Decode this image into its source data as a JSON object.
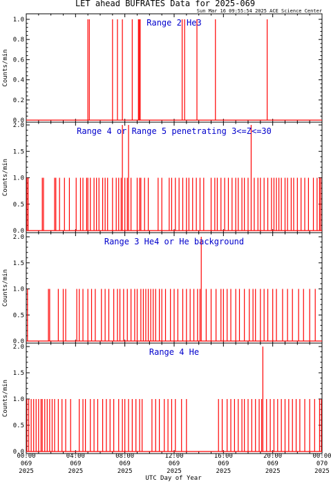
{
  "header": {
    "title": "LET ahead BUFRATES Data for 2025-069",
    "timestamp": "Sun Mar 16 09:55:54 2025 ACE Science Center"
  },
  "xaxis": {
    "label": "UTC Day of Year",
    "ticks": [
      {
        "hour": 0,
        "lines": [
          "00:00",
          "069",
          "2025"
        ]
      },
      {
        "hour": 4,
        "lines": [
          "04:00",
          "069",
          "2025"
        ]
      },
      {
        "hour": 8,
        "lines": [
          "08:00",
          "069",
          "2025"
        ]
      },
      {
        "hour": 12,
        "lines": [
          "12:00",
          "069",
          "2025"
        ]
      },
      {
        "hour": 16,
        "lines": [
          "16:00",
          "069",
          "2025"
        ]
      },
      {
        "hour": 20,
        "lines": [
          "20:00",
          "069",
          "2025"
        ]
      },
      {
        "hour": 24,
        "lines": [
          "00:00",
          "070",
          "2025"
        ]
      }
    ],
    "range": [
      0,
      24
    ]
  },
  "colors": {
    "data": "#ff0000",
    "label": "#0000cc",
    "axis": "#000000"
  },
  "chart_data": [
    {
      "type": "line",
      "label": "Range 2 He3",
      "ylabel": "Counts/min",
      "ylim": [
        0,
        1.0
      ],
      "yticks": [
        "0.0",
        "0.2",
        "0.4",
        "0.6",
        "0.8",
        "1.0"
      ],
      "ytick_values": [
        0,
        0.2,
        0.4,
        0.6,
        0.8,
        1.0
      ],
      "spikes": [
        [
          5.0,
          1
        ],
        [
          5.12,
          1
        ],
        [
          7.0,
          1
        ],
        [
          7.4,
          1
        ],
        [
          7.8,
          1
        ],
        [
          8.6,
          1
        ],
        [
          9.1,
          1
        ],
        [
          9.17,
          1
        ],
        [
          9.25,
          1
        ],
        [
          12.65,
          1
        ],
        [
          12.85,
          1
        ],
        [
          13.85,
          1
        ],
        [
          15.35,
          1
        ],
        [
          19.55,
          1
        ]
      ]
    },
    {
      "type": "line",
      "label": "Range 4 or Range 5 penetrating 3<=Z<=30",
      "ylabel": "Counts/min",
      "ylim": [
        0,
        2.0
      ],
      "yticks": [
        "0.0",
        "0.5",
        "1.0",
        "1.5",
        "2.0"
      ],
      "ytick_values": [
        0,
        0.5,
        1.0,
        1.5,
        2.0
      ],
      "spikes": [
        [
          0.05,
          1
        ],
        [
          0.15,
          1
        ],
        [
          1.3,
          1
        ],
        [
          1.4,
          1
        ],
        [
          2.3,
          1
        ],
        [
          2.4,
          1
        ],
        [
          2.7,
          1
        ],
        [
          3.1,
          1
        ],
        [
          3.5,
          1
        ],
        [
          4.05,
          1
        ],
        [
          4.4,
          1
        ],
        [
          4.6,
          1
        ],
        [
          4.9,
          1
        ],
        [
          5.0,
          1
        ],
        [
          5.2,
          1
        ],
        [
          5.5,
          1
        ],
        [
          5.7,
          1
        ],
        [
          5.9,
          1
        ],
        [
          6.2,
          1
        ],
        [
          6.4,
          1
        ],
        [
          6.6,
          1
        ],
        [
          7.0,
          1
        ],
        [
          7.3,
          1
        ],
        [
          7.5,
          1
        ],
        [
          7.7,
          1
        ],
        [
          7.8,
          2
        ],
        [
          8.0,
          1
        ],
        [
          8.2,
          1
        ],
        [
          8.3,
          2
        ],
        [
          8.5,
          1
        ],
        [
          9.0,
          1
        ],
        [
          9.2,
          1
        ],
        [
          9.3,
          1
        ],
        [
          9.6,
          1
        ],
        [
          9.9,
          1
        ],
        [
          10.7,
          1
        ],
        [
          11.0,
          1
        ],
        [
          11.6,
          1
        ],
        [
          11.8,
          1
        ],
        [
          12.1,
          1
        ],
        [
          12.4,
          1
        ],
        [
          12.7,
          1
        ],
        [
          13.0,
          1
        ],
        [
          13.2,
          1
        ],
        [
          13.5,
          1
        ],
        [
          13.8,
          1
        ],
        [
          14.1,
          1
        ],
        [
          14.4,
          1
        ],
        [
          15.0,
          1
        ],
        [
          15.3,
          1
        ],
        [
          15.5,
          1
        ],
        [
          15.8,
          1
        ],
        [
          16.1,
          1
        ],
        [
          16.4,
          1
        ],
        [
          16.7,
          1
        ],
        [
          17.0,
          1
        ],
        [
          17.2,
          1
        ],
        [
          17.5,
          1
        ],
        [
          17.7,
          1
        ],
        [
          18.0,
          1
        ],
        [
          18.25,
          2
        ],
        [
          18.5,
          1
        ],
        [
          18.8,
          1
        ],
        [
          19.0,
          1
        ],
        [
          19.3,
          1
        ],
        [
          19.6,
          1
        ],
        [
          19.9,
          1
        ],
        [
          20.1,
          1
        ],
        [
          20.3,
          1
        ],
        [
          20.5,
          1
        ],
        [
          20.7,
          1
        ],
        [
          21.0,
          1
        ],
        [
          21.2,
          1
        ],
        [
          21.5,
          1
        ],
        [
          21.7,
          1
        ],
        [
          22.0,
          1
        ],
        [
          22.3,
          1
        ],
        [
          22.6,
          1
        ],
        [
          22.9,
          1
        ],
        [
          23.3,
          1
        ],
        [
          23.6,
          1
        ],
        [
          23.8,
          1
        ],
        [
          23.9,
          1
        ]
      ]
    },
    {
      "type": "line",
      "label": "Range 3 He4 or He background",
      "ylabel": "Counts/min",
      "ylim": [
        0,
        2.0
      ],
      "yticks": [
        "0.0",
        "0.5",
        "1.0",
        "1.5",
        "2.0"
      ],
      "ytick_values": [
        0,
        0.5,
        1.0,
        1.5,
        2.0
      ],
      "spikes": [
        [
          0.1,
          1
        ],
        [
          1.8,
          1
        ],
        [
          1.9,
          1
        ],
        [
          2.6,
          1
        ],
        [
          3.0,
          1
        ],
        [
          3.2,
          1
        ],
        [
          4.1,
          1
        ],
        [
          4.3,
          1
        ],
        [
          4.6,
          1
        ],
        [
          5.0,
          1
        ],
        [
          5.3,
          1
        ],
        [
          5.6,
          1
        ],
        [
          6.1,
          1
        ],
        [
          6.4,
          1
        ],
        [
          6.7,
          1
        ],
        [
          7.1,
          1
        ],
        [
          7.4,
          1
        ],
        [
          7.6,
          1
        ],
        [
          7.9,
          1
        ],
        [
          8.2,
          1
        ],
        [
          8.5,
          1
        ],
        [
          8.8,
          1
        ],
        [
          9.0,
          1
        ],
        [
          9.3,
          1
        ],
        [
          9.5,
          1
        ],
        [
          9.7,
          1
        ],
        [
          9.9,
          1
        ],
        [
          10.1,
          1
        ],
        [
          10.3,
          1
        ],
        [
          10.5,
          1
        ],
        [
          10.8,
          1
        ],
        [
          11.0,
          1
        ],
        [
          11.3,
          1
        ],
        [
          11.7,
          1
        ],
        [
          12.0,
          1
        ],
        [
          12.3,
          1
        ],
        [
          12.7,
          1
        ],
        [
          13.0,
          1
        ],
        [
          13.3,
          1
        ],
        [
          13.6,
          1
        ],
        [
          13.9,
          1
        ],
        [
          14.1,
          1
        ],
        [
          14.2,
          2
        ],
        [
          14.6,
          1
        ],
        [
          15.0,
          1
        ],
        [
          15.4,
          1
        ],
        [
          15.8,
          1
        ],
        [
          16.0,
          1
        ],
        [
          16.3,
          1
        ],
        [
          16.6,
          1
        ],
        [
          17.0,
          1
        ],
        [
          17.3,
          1
        ],
        [
          17.7,
          1
        ],
        [
          18.1,
          1
        ],
        [
          18.4,
          1
        ],
        [
          18.6,
          1
        ],
        [
          19.0,
          1
        ],
        [
          19.3,
          1
        ],
        [
          19.6,
          1
        ],
        [
          20.0,
          1
        ],
        [
          20.3,
          1
        ],
        [
          20.8,
          1
        ],
        [
          21.2,
          1
        ],
        [
          21.6,
          1
        ],
        [
          22.1,
          1
        ],
        [
          22.5,
          1
        ],
        [
          23.0,
          1
        ],
        [
          23.45,
          1
        ]
      ]
    },
    {
      "type": "line",
      "label": "Range 4 He",
      "ylabel": "Counts/min",
      "ylim": [
        0,
        2.0
      ],
      "yticks": [
        "0.0",
        "0.5",
        "1.0",
        "1.5",
        "2.0"
      ],
      "ytick_values": [
        0,
        0.5,
        1.0,
        1.5,
        2.0
      ],
      "spikes": [
        [
          0.05,
          1
        ],
        [
          0.2,
          1
        ],
        [
          0.4,
          1
        ],
        [
          0.6,
          1
        ],
        [
          0.8,
          1
        ],
        [
          1.0,
          1
        ],
        [
          1.2,
          1
        ],
        [
          1.3,
          1
        ],
        [
          1.5,
          1
        ],
        [
          1.7,
          1
        ],
        [
          1.9,
          1
        ],
        [
          2.1,
          1
        ],
        [
          2.3,
          1
        ],
        [
          2.6,
          1
        ],
        [
          2.9,
          1
        ],
        [
          3.2,
          1
        ],
        [
          3.6,
          1
        ],
        [
          4.3,
          1
        ],
        [
          4.6,
          1
        ],
        [
          4.8,
          1
        ],
        [
          5.2,
          1
        ],
        [
          5.5,
          1
        ],
        [
          5.8,
          1
        ],
        [
          6.2,
          1
        ],
        [
          6.5,
          1
        ],
        [
          6.8,
          1
        ],
        [
          7.1,
          1
        ],
        [
          7.5,
          1
        ],
        [
          7.8,
          1
        ],
        [
          8.0,
          1
        ],
        [
          8.3,
          1
        ],
        [
          8.6,
          1
        ],
        [
          8.9,
          1
        ],
        [
          9.2,
          1
        ],
        [
          9.4,
          1
        ],
        [
          10.2,
          1
        ],
        [
          10.5,
          1
        ],
        [
          10.8,
          1
        ],
        [
          11.2,
          1
        ],
        [
          11.5,
          1
        ],
        [
          11.8,
          1
        ],
        [
          12.1,
          1
        ],
        [
          12.6,
          1
        ],
        [
          13.0,
          1
        ],
        [
          15.6,
          1
        ],
        [
          15.9,
          1
        ],
        [
          16.3,
          1
        ],
        [
          16.6,
          1
        ],
        [
          16.9,
          1
        ],
        [
          17.2,
          1
        ],
        [
          17.5,
          1
        ],
        [
          17.7,
          1
        ],
        [
          18.0,
          1
        ],
        [
          18.3,
          1
        ],
        [
          18.6,
          1
        ],
        [
          18.9,
          1
        ],
        [
          19.1,
          1
        ],
        [
          19.2,
          2
        ],
        [
          19.5,
          1
        ],
        [
          19.8,
          1
        ],
        [
          20.1,
          1
        ],
        [
          20.4,
          1
        ],
        [
          20.7,
          1
        ],
        [
          21.0,
          1
        ],
        [
          21.3,
          1
        ],
        [
          21.6,
          1
        ],
        [
          21.9,
          1
        ],
        [
          22.2,
          1
        ],
        [
          22.6,
          1
        ],
        [
          23.0,
          1
        ],
        [
          23.4,
          1
        ],
        [
          23.8,
          1
        ],
        [
          23.95,
          1
        ]
      ]
    }
  ]
}
